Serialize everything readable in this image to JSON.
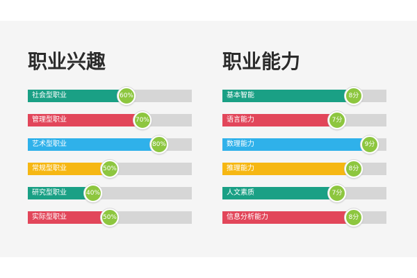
{
  "colors": {
    "teal": "#1aa085",
    "red": "#e2465a",
    "blue": "#2fb1ea",
    "yellow": "#f6b713",
    "track": "#d6d6d6",
    "badge": "#8dc63f"
  },
  "chart_data": [
    {
      "type": "bar",
      "title": "职业兴趣",
      "orientation": "horizontal",
      "xlim": [
        0,
        100
      ],
      "categories": [
        "社会型职业",
        "管理型职业",
        "艺术型职业",
        "常规型职业",
        "研究型职业",
        "实际型职业"
      ],
      "values": [
        60,
        70,
        80,
        50,
        40,
        50
      ],
      "value_labels": [
        "60%",
        "70%",
        "80%",
        "50%",
        "40%",
        "50%"
      ],
      "bar_colors": [
        "#1aa085",
        "#e2465a",
        "#2fb1ea",
        "#f6b713",
        "#1aa085",
        "#e2465a"
      ]
    },
    {
      "type": "bar",
      "title": "职业能力",
      "orientation": "horizontal",
      "xlim": [
        0,
        10
      ],
      "categories": [
        "基本智能",
        "语言能力",
        "数理能力",
        "推理能力",
        "人文素质",
        "信息分析能力"
      ],
      "values": [
        8,
        7,
        9,
        8,
        7,
        8
      ],
      "value_labels": [
        "8分",
        "7分",
        "9分",
        "8分",
        "7分",
        "8分"
      ],
      "bar_colors": [
        "#1aa085",
        "#e2465a",
        "#2fb1ea",
        "#f6b713",
        "#1aa085",
        "#e2465a"
      ]
    }
  ]
}
